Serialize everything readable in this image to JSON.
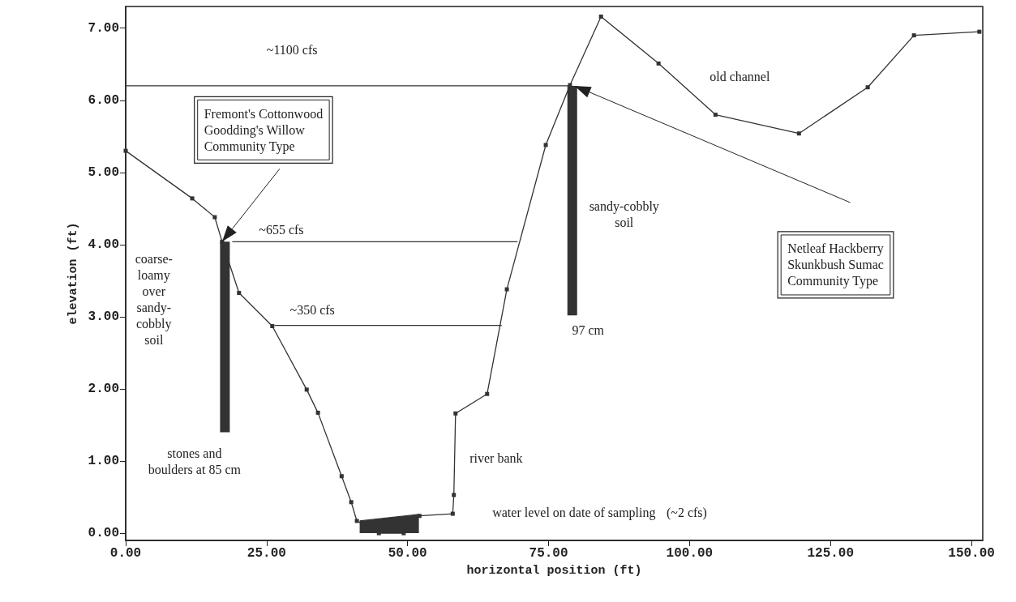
{
  "chart_data": {
    "type": "line",
    "xlabel": "horizontal position (ft)",
    "ylabel": "elevation (ft)",
    "xlim": [
      0,
      152
    ],
    "ylim": [
      -0.1,
      7.3
    ],
    "xticks": [
      {
        "value": 0,
        "label": "0.00"
      },
      {
        "value": 25,
        "label": "25.00"
      },
      {
        "value": 50,
        "label": "50.00"
      },
      {
        "value": 75,
        "label": "75.00"
      },
      {
        "value": 100,
        "label": "100.00"
      },
      {
        "value": 125,
        "label": "125.00"
      },
      {
        "value": 150,
        "label": "150.00"
      }
    ],
    "yticks": [
      {
        "value": 0,
        "label": "0.00"
      },
      {
        "value": 1,
        "label": "1.00"
      },
      {
        "value": 2,
        "label": "2.00"
      },
      {
        "value": 3,
        "label": "3.00"
      },
      {
        "value": 4,
        "label": "4.00"
      },
      {
        "value": 5,
        "label": "5.00"
      },
      {
        "value": 6,
        "label": "6.00"
      },
      {
        "value": 7,
        "label": "7.00"
      }
    ],
    "grid": false,
    "marker": "square",
    "line_style": "solid",
    "series": [
      {
        "color": "#333333",
        "x": [
          0,
          11.8,
          15.8,
          17.1,
          20.1,
          26.0,
          32.1,
          34.1,
          38.3,
          40.0,
          41.0,
          44.9,
          49.3,
          52.1,
          58.0,
          58.2,
          58.5,
          64.1,
          67.6,
          74.5,
          78.8,
          84.3,
          94.5,
          104.6,
          119.4,
          131.6,
          139.8,
          151.4
        ],
        "values": [
          5.3,
          4.64,
          4.38,
          4.04,
          3.33,
          2.87,
          1.99,
          1.67,
          0.79,
          0.43,
          0.17,
          0.0,
          0.0,
          0.24,
          0.27,
          0.53,
          1.66,
          1.93,
          3.38,
          5.38,
          6.21,
          7.16,
          6.51,
          5.8,
          5.54,
          6.18,
          6.9,
          6.95
        ]
      },
      {
        "type": "area",
        "color": "#333333",
        "marker": "none",
        "x": [
          41.5,
          52.0
        ],
        "values": [
          0.17,
          0.26
        ]
      },
      {
        "type": "line",
        "color": "#333333",
        "marker": "none",
        "x": [
          0,
          79.0
        ],
        "values": [
          6.2,
          6.2
        ]
      },
      {
        "type": "line",
        "color": "#333333",
        "marker": "none",
        "x": [
          18.9,
          69.5
        ],
        "values": [
          4.04,
          4.04
        ]
      },
      {
        "type": "line",
        "color": "#333333",
        "marker": "none",
        "x": [
          26.4,
          66.7
        ],
        "values": [
          2.88,
          2.88
        ]
      },
      {
        "type": "bar",
        "color": "#333333",
        "x": [
          17.6,
          79.2
        ],
        "base": [
          1.4,
          3.02
        ],
        "values": [
          2.64,
          3.18
        ]
      }
    ],
    "annotations": [
      "~1100 cfs",
      "~655 cfs",
      "~350 cfs",
      "Fremont's Cottonwood\nGoodding's Willow\nCommunity Type",
      "coarse-\nloamy\nover\nsandy-\ncobbly\nsoil",
      "stones and\nboulders at 85 cm",
      "sandy-cobbly\nsoil",
      "97 cm",
      "old channel",
      "river bank",
      "water level on date of sampling",
      "(~2 cfs)",
      "Netleaf Hackberry\nSkunkbush Sumac\nCommunity Type"
    ]
  }
}
